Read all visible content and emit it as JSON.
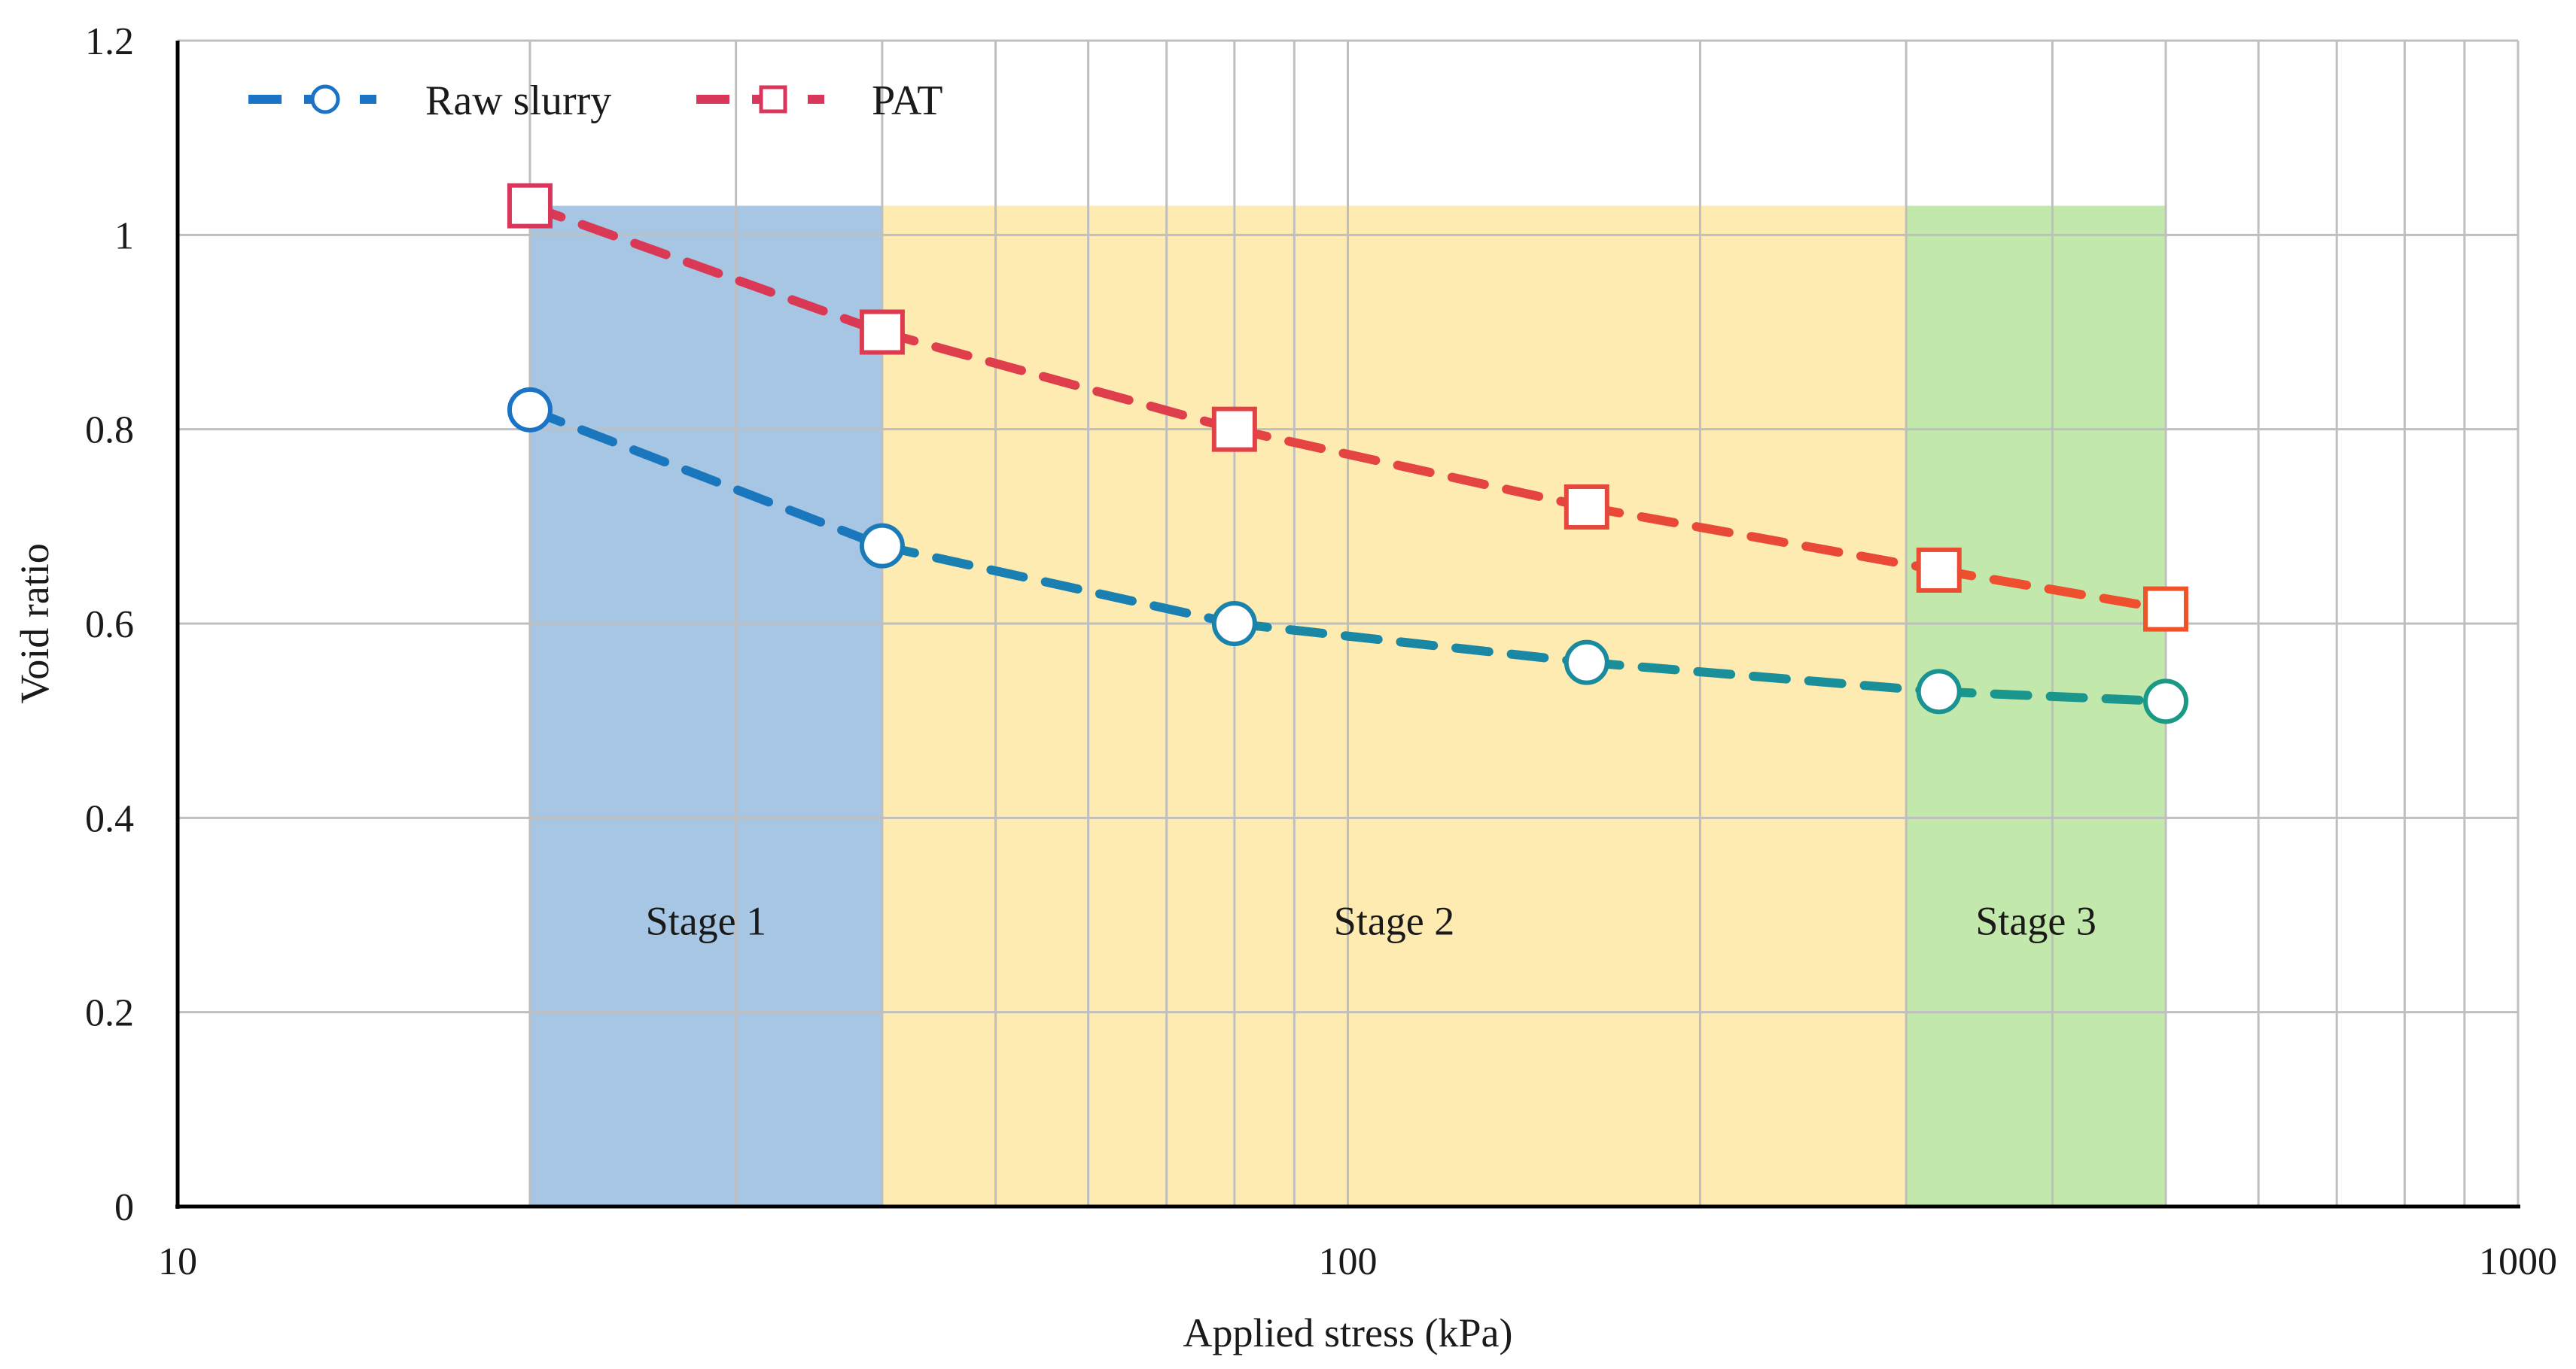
{
  "chart_data": {
    "type": "line",
    "x_scale": "log",
    "xlabel": "Applied stress (kPa)",
    "ylabel": "Void ratio",
    "xlim": [
      10,
      1000
    ],
    "ylim": [
      0,
      1.2
    ],
    "x_ticks": [
      10,
      100,
      1000
    ],
    "x_tick_labels": [
      "10",
      "100",
      "1000"
    ],
    "y_ticks": [
      0,
      0.2,
      0.4,
      0.6,
      0.8,
      1,
      1.2
    ],
    "y_tick_labels": [
      "0",
      "0.2",
      "0.4",
      "0.6",
      "0.8",
      "1",
      "1.2"
    ],
    "grid": true,
    "legend_position": "top-left",
    "series": [
      {
        "name": "Raw slurry",
        "marker": "circle",
        "line_style": "dashed",
        "color_start": "#1a73c4",
        "color_end": "#1a9a86",
        "x": [
          20,
          40,
          80,
          160,
          320,
          500
        ],
        "y": [
          0.82,
          0.68,
          0.6,
          0.56,
          0.53,
          0.52
        ]
      },
      {
        "name": "PAT",
        "marker": "square",
        "line_style": "dashed",
        "color_start": "#d8365a",
        "color_end": "#f0532a",
        "x": [
          20,
          40,
          80,
          160,
          320,
          500
        ],
        "y": [
          1.03,
          0.9,
          0.8,
          0.72,
          0.655,
          0.615
        ]
      }
    ],
    "stages": [
      {
        "label": "Stage 1",
        "x_start": 20,
        "x_end": 40,
        "y_top": 1.03,
        "color": "#a7c6e3"
      },
      {
        "label": "Stage 2",
        "x_start": 40,
        "x_end": 300,
        "y_top": 1.03,
        "color": "#fdebb1"
      },
      {
        "label": "Stage 3",
        "x_start": 300,
        "x_end": 500,
        "y_top": 1.03,
        "color": "#c3e8ab"
      }
    ],
    "colors": {
      "grid": "#bfbfbf",
      "axis": "#000000",
      "text": "#1a1a1a"
    }
  }
}
